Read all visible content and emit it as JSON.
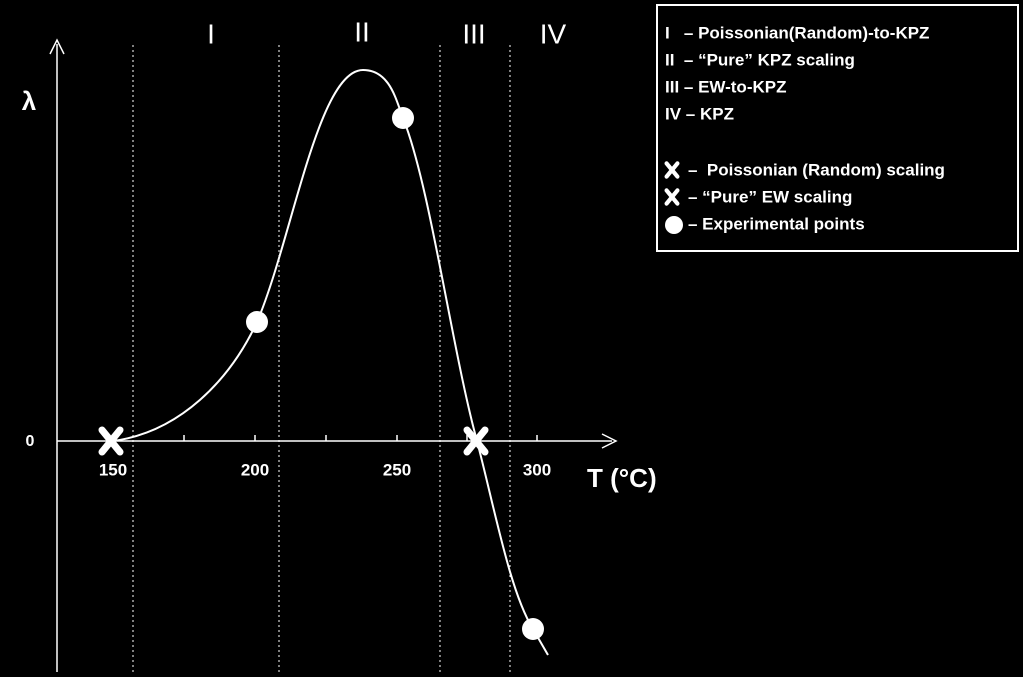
{
  "region_labels": [
    "I",
    "II",
    "III",
    "IV"
  ],
  "axes": {
    "y_label": "λ",
    "y_tick": "0",
    "x_label": "T (°C)",
    "x_ticks": [
      "150",
      "200",
      "250",
      "300"
    ]
  },
  "legend": {
    "regions": [
      "I   – Poissonian(Random)-to-KPZ",
      "II  – “Pure” KPZ scaling",
      "III – EW-to-KPZ",
      "IV – KPZ"
    ],
    "symbols": [
      "–  Poissonian (Random) scaling",
      "– “Pure” EW scaling",
      "– Experimental points"
    ]
  }
}
